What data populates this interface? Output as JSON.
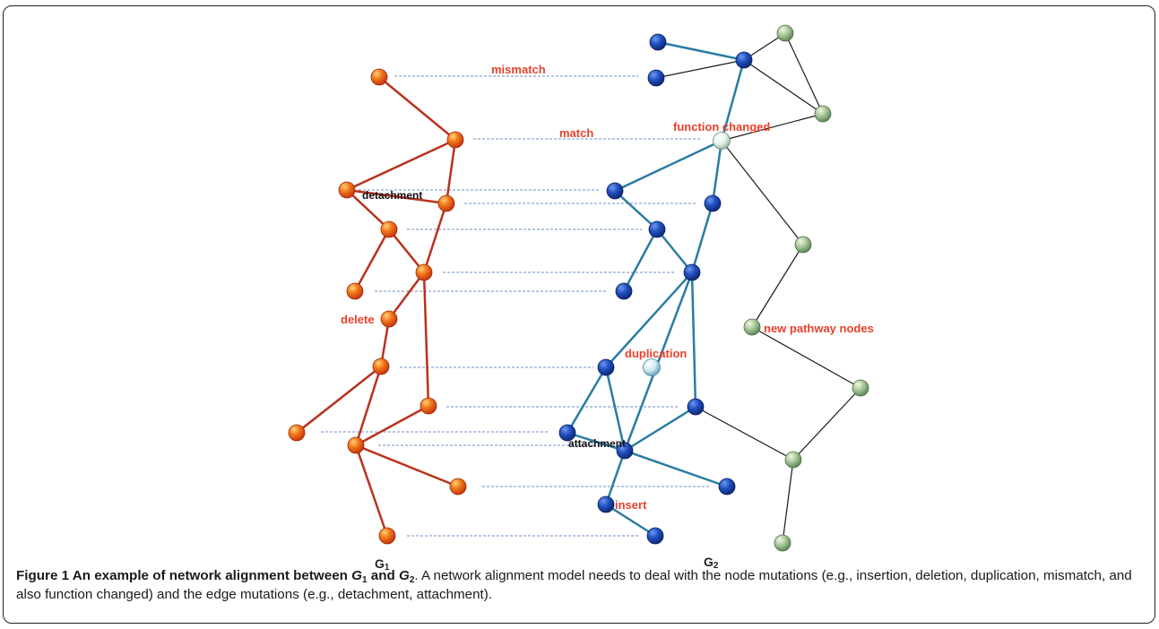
{
  "labels": {
    "mismatch": "mismatch",
    "match": "match",
    "function_changed": "function changed",
    "detachment": "detachment",
    "delete": "delete",
    "duplication": "duplication",
    "new_pathway_nodes": "new pathway nodes",
    "attachment": "attachment",
    "insert": "insert",
    "g1_main": "G",
    "g1_sub": "1",
    "g2_main": "G",
    "g2_sub": "2"
  },
  "caption": {
    "prefix": "Figure 1 An example of network alignment between ",
    "var1": "G",
    "sub1": "1",
    "and": " and ",
    "var2": "G",
    "sub2": "2",
    "period": ".",
    "body": " A network alignment model needs to deal with the node mutations (e.g., insertion, deletion, duplication, mismatch, and also function changed) and the edge mutations (e.g., detachment, attachment)."
  },
  "colors": {
    "g1_node": "#f06a18",
    "g1_edge": "#b8321e",
    "g2_node": "#1f4fbf",
    "g2_edge": "#2a7ca3",
    "new_node": "#8cb07a",
    "alignment_line": "#6c8fc6",
    "label_red": "#e8412c"
  }
}
